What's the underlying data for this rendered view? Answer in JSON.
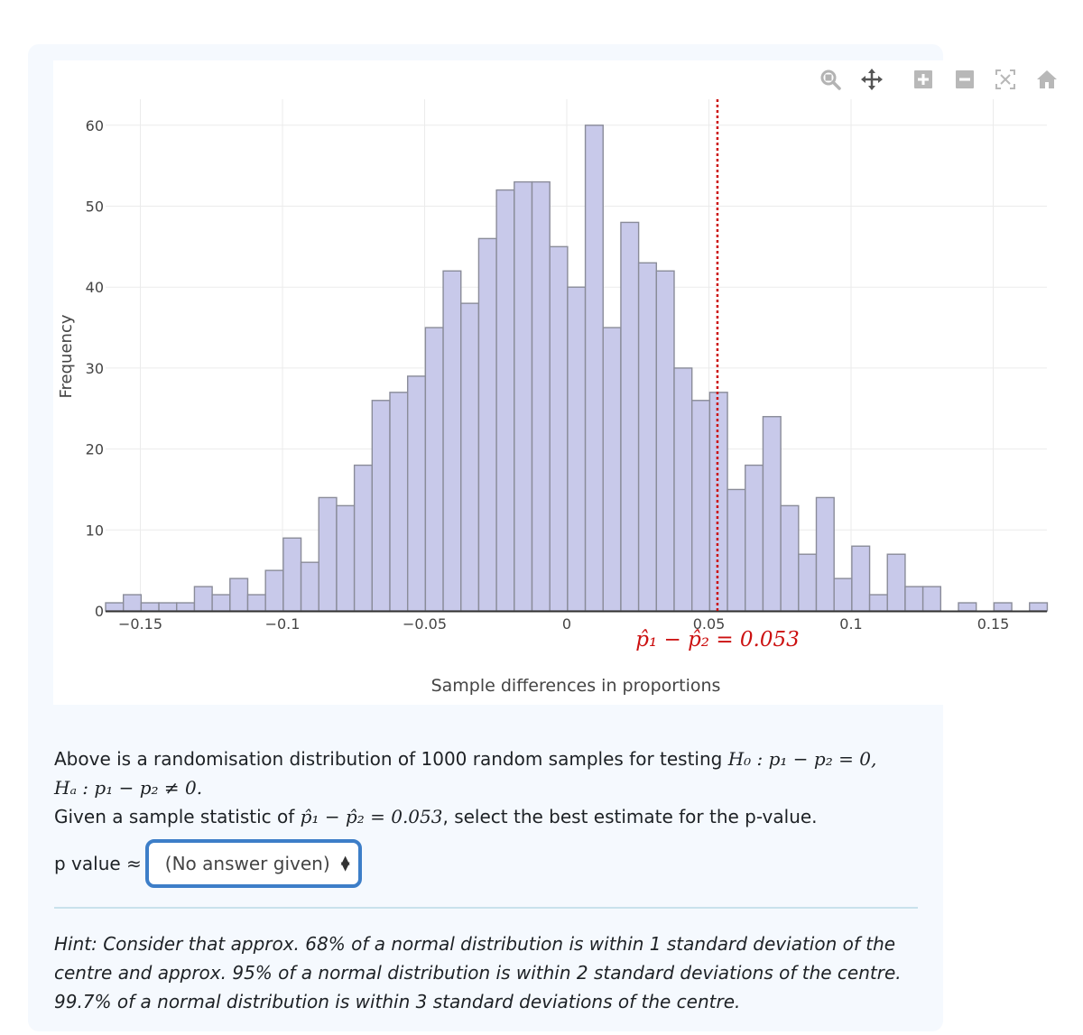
{
  "chart_data": {
    "type": "bar",
    "subtype": "histogram",
    "title": "",
    "xlabel": "Sample differences in proportions",
    "ylabel": "Frequency",
    "xlim": [
      -0.1625,
      0.1688
    ],
    "ylim": [
      0,
      63
    ],
    "x_ticks": [
      -0.15,
      -0.1,
      -0.05,
      0,
      0.05,
      0.1,
      0.15
    ],
    "x_tick_labels": [
      "−0.15",
      "−0.1",
      "−0.05",
      "0",
      "0.05",
      "0.1",
      "0.15"
    ],
    "y_ticks": [
      0,
      10,
      20,
      30,
      40,
      50,
      60
    ],
    "y_tick_labels": [
      "0",
      "10",
      "20",
      "30",
      "40",
      "50",
      "60"
    ],
    "grid": true,
    "bin_width": 0.00625,
    "bin_start": -0.1625,
    "values": [
      1,
      2,
      1,
      1,
      1,
      3,
      2,
      4,
      2,
      5,
      9,
      6,
      14,
      13,
      18,
      26,
      27,
      29,
      35,
      42,
      38,
      46,
      52,
      53,
      53,
      45,
      40,
      60,
      35,
      48,
      43,
      42,
      30,
      26,
      27,
      15,
      18,
      24,
      13,
      7,
      14,
      4,
      8,
      2,
      7,
      3,
      3,
      0,
      1,
      0,
      1,
      0,
      1
    ],
    "bar_fill": "#c8c9ea",
    "bar_edge": "#8a8c99",
    "reference_line": {
      "x": 0.053,
      "style": "dotted",
      "color": "#cc1111",
      "label": "p̂₁ − p̂₂ = 0.053"
    },
    "total_samples": 1000
  },
  "toolbar": {
    "items": [
      {
        "name": "zoom",
        "icon": "magnifier-icon"
      },
      {
        "name": "pan",
        "icon": "move-arrows-icon"
      },
      {
        "name": "zoom-in",
        "icon": "plus-box-icon"
      },
      {
        "name": "zoom-out",
        "icon": "minus-box-icon"
      },
      {
        "name": "autoscale",
        "icon": "autoscale-icon"
      },
      {
        "name": "reset-axes",
        "icon": "home-icon"
      }
    ]
  },
  "question": {
    "line1_prefix": "Above is a randomisation distribution of 1000 random samples for testing ",
    "h0": "H₀ : p₁ − p₂ = 0,",
    "ha": "Hₐ : p₁ − p₂ ≠ 0.",
    "line3_prefix": "Given a sample statistic of ",
    "statistic": "p̂₁ − p̂₂ = 0.053",
    "line3_suffix": ", select the best estimate for the p-value."
  },
  "answer": {
    "label": "p value ≈",
    "select_value": "(No answer given)",
    "select_arrows": "⬍"
  },
  "hint": "Hint: Consider that approx. 68% of a normal distribution is within 1 standard deviation of the centre and approx. 95% of a normal distribution is within 2 standard deviations of the centre. 99.7% of a normal distribution is within 3 standard deviations of the centre.",
  "colors": {
    "accent": "#3d7ec8",
    "reference_line": "#cc1111",
    "card_bg": "#f5f9fe"
  }
}
